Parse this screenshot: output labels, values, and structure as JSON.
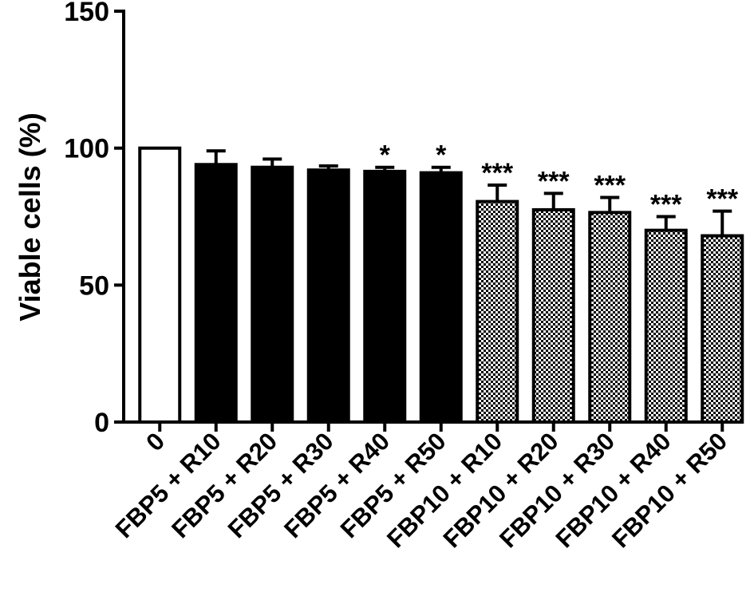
{
  "chart_data": {
    "type": "bar",
    "ylabel": "Viable cells (%)",
    "xlabel": "",
    "ylim": [
      0,
      150
    ],
    "yticks": [
      0,
      50,
      100,
      150
    ],
    "categories": [
      "0",
      "FBP5 + R10",
      "FBP5 + R20",
      "FBP5 + R30",
      "FBP5 + R40",
      "FBP5 + R50",
      "FBP10 + R10",
      "FBP10 + R20",
      "FBP10 + R30",
      "FBP10 + R40",
      "FBP10 + R50"
    ],
    "values": [
      100,
      94,
      93,
      92,
      91.5,
      91,
      80.5,
      77.5,
      76.5,
      70,
      68
    ],
    "errors": [
      0,
      5,
      3,
      1.5,
      1.5,
      2,
      6,
      6,
      5.5,
      5,
      9
    ],
    "fills": [
      "white",
      "black",
      "black",
      "black",
      "black",
      "black",
      "checker",
      "checker",
      "checker",
      "checker",
      "checker"
    ],
    "significance": [
      "",
      "",
      "",
      "",
      "*",
      "*",
      "***",
      "***",
      "***",
      "***",
      "***"
    ],
    "colors": {
      "bar_solid": "#000000",
      "bar_open": "#ffffff",
      "axis": "#000000"
    }
  }
}
